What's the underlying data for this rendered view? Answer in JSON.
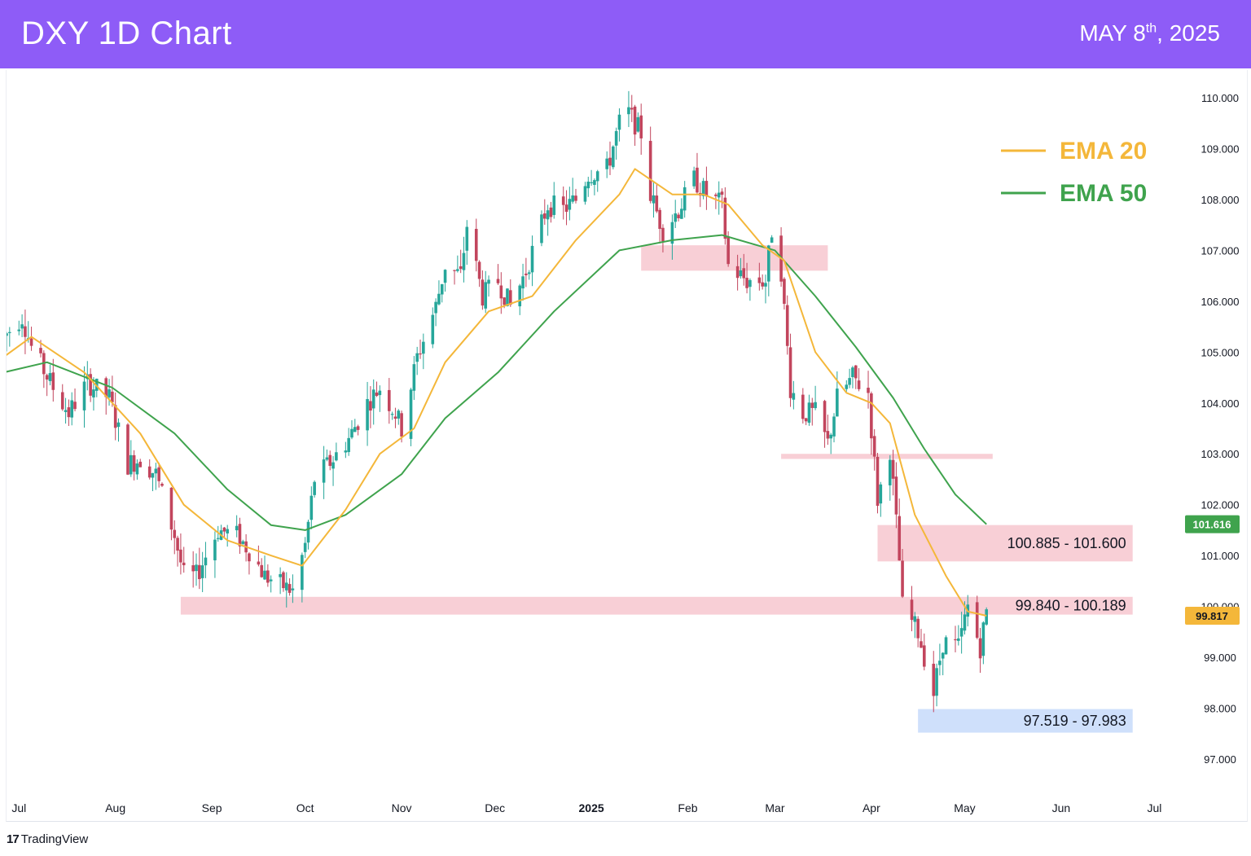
{
  "header": {
    "title": "DXY 1D Chart",
    "date_main": "MAY 8",
    "date_sup": "th",
    "date_year": ", 2025"
  },
  "brand": {
    "logo_mark": "17",
    "logo_text": "TradingView"
  },
  "colors": {
    "header_bg": "#8e5cf7",
    "up_candle": "#26a69a",
    "down_candle": "#c2455d",
    "ema20": "#f4b73a",
    "ema50": "#3fa34d",
    "resistance_zone": "#f8cfd6",
    "support_zone": "#cfe0fb"
  },
  "chart_data": {
    "type": "candlestick",
    "symbol": "DXY",
    "timeframe": "1D",
    "ylim": [
      96.3,
      110.5
    ],
    "y_ticks": [
      "97.000",
      "98.000",
      "99.000",
      "100.000",
      "101.000",
      "102.000",
      "103.000",
      "104.000",
      "105.000",
      "106.000",
      "107.000",
      "108.000",
      "109.000",
      "110.000"
    ],
    "x_ticks": [
      "Jul",
      "Aug",
      "Sep",
      "Oct",
      "Nov",
      "Dec",
      "2025",
      "Feb",
      "Mar",
      "Apr",
      "May",
      "Jun",
      "Jul"
    ],
    "x_range_days": [
      -4,
      373
    ],
    "last_ema50_badge": "101.616",
    "last_ema20_badge": "99.817",
    "legend": [
      {
        "name": "EMA 20",
        "color": "#f4b73a"
      },
      {
        "name": "EMA 50",
        "color": "#3fa34d"
      }
    ],
    "zones": [
      {
        "kind": "resistance",
        "label": "",
        "from": "2025-01-17",
        "to": "2025-03-18",
        "low": 106.6,
        "high": 107.1
      },
      {
        "kind": "resistance",
        "label": "",
        "from": "2025-03-03",
        "to": "2025-05-10",
        "low": 102.9,
        "high": 103.0
      },
      {
        "kind": "resistance",
        "label": "100.885 - 101.600",
        "from": "2025-04-03",
        "to": "2025-06-24",
        "low": 100.885,
        "high": 101.6
      },
      {
        "kind": "resistance",
        "label": "99.840 - 100.189",
        "from": "2024-08-22",
        "to": "2025-06-24",
        "low": 99.84,
        "high": 100.189
      },
      {
        "kind": "support",
        "label": "97.519 - 97.983",
        "from": "2025-04-16",
        "to": "2025-06-24",
        "low": 97.519,
        "high": 97.983
      }
    ],
    "close_path": [
      [
        "2024-06-26",
        105.3
      ],
      [
        "2024-07-02",
        105.7
      ],
      [
        "2024-07-05",
        105.1
      ],
      [
        "2024-07-12",
        104.3
      ],
      [
        "2024-07-17",
        103.8
      ],
      [
        "2024-07-23",
        104.4
      ],
      [
        "2024-07-30",
        104.1
      ],
      [
        "2024-08-05",
        102.8
      ],
      [
        "2024-08-09",
        102.9
      ],
      [
        "2024-08-14",
        102.6
      ],
      [
        "2024-08-20",
        101.4
      ],
      [
        "2024-08-23",
        100.6
      ],
      [
        "2024-08-27",
        100.6
      ],
      [
        "2024-09-03",
        101.5
      ],
      [
        "2024-09-09",
        101.4
      ],
      [
        "2024-09-13",
        101.1
      ],
      [
        "2024-09-18",
        100.6
      ],
      [
        "2024-09-24",
        100.4
      ],
      [
        "2024-09-27",
        100.3
      ],
      [
        "2024-10-01",
        101.2
      ],
      [
        "2024-10-04",
        102.5
      ],
      [
        "2024-10-10",
        102.9
      ],
      [
        "2024-10-15",
        103.3
      ],
      [
        "2024-10-21",
        104.0
      ],
      [
        "2024-10-25",
        104.3
      ],
      [
        "2024-10-30",
        103.8
      ],
      [
        "2024-11-01",
        103.5
      ],
      [
        "2024-11-06",
        104.9
      ],
      [
        "2024-11-12",
        105.9
      ],
      [
        "2024-11-15",
        106.7
      ],
      [
        "2024-11-20",
        106.5
      ],
      [
        "2024-11-22",
        107.5
      ],
      [
        "2024-11-27",
        106.1
      ],
      [
        "2024-12-02",
        106.4
      ],
      [
        "2024-12-06",
        105.9
      ],
      [
        "2024-12-11",
        106.6
      ],
      [
        "2024-12-18",
        107.9
      ],
      [
        "2024-12-23",
        107.8
      ],
      [
        "2024-12-27",
        108.0
      ],
      [
        "2024-12-31",
        108.5
      ],
      [
        "2025-01-06",
        108.6
      ],
      [
        "2025-01-10",
        109.5
      ],
      [
        "2025-01-13",
        109.7
      ],
      [
        "2025-01-17",
        109.3
      ],
      [
        "2025-01-20",
        108.1
      ],
      [
        "2025-01-24",
        107.4
      ],
      [
        "2025-01-29",
        107.8
      ],
      [
        "2025-02-03",
        108.4
      ],
      [
        "2025-02-07",
        108.1
      ],
      [
        "2025-02-12",
        107.9
      ],
      [
        "2025-02-14",
        106.7
      ],
      [
        "2025-02-20",
        106.4
      ],
      [
        "2025-02-26",
        106.4
      ],
      [
        "2025-02-28",
        107.4
      ],
      [
        "2025-03-03",
        106.6
      ],
      [
        "2025-03-06",
        104.3
      ],
      [
        "2025-03-10",
        103.8
      ],
      [
        "2025-03-14",
        103.8
      ],
      [
        "2025-03-18",
        103.2
      ],
      [
        "2025-03-21",
        104.1
      ],
      [
        "2025-03-26",
        104.5
      ],
      [
        "2025-03-31",
        104.2
      ],
      [
        "2025-04-03",
        102.1
      ],
      [
        "2025-04-07",
        103.1
      ],
      [
        "2025-04-10",
        100.9
      ],
      [
        "2025-04-11",
        100.0
      ],
      [
        "2025-04-16",
        99.5
      ],
      [
        "2025-04-21",
        98.3
      ],
      [
        "2025-04-24",
        99.3
      ],
      [
        "2025-04-29",
        99.2
      ],
      [
        "2025-05-02",
        100.0
      ],
      [
        "2025-05-06",
        99.2
      ],
      [
        "2025-05-08",
        99.9
      ]
    ],
    "ema20_path": [
      [
        "2024-06-26",
        104.9
      ],
      [
        "2024-07-05",
        105.3
      ],
      [
        "2024-07-22",
        104.6
      ],
      [
        "2024-08-09",
        103.4
      ],
      [
        "2024-08-23",
        102.0
      ],
      [
        "2024-09-06",
        101.3
      ],
      [
        "2024-09-20",
        101.0
      ],
      [
        "2024-09-30",
        100.8
      ],
      [
        "2024-10-14",
        101.9
      ],
      [
        "2024-10-25",
        103.0
      ],
      [
        "2024-11-05",
        103.5
      ],
      [
        "2024-11-15",
        104.8
      ],
      [
        "2024-11-29",
        105.8
      ],
      [
        "2024-12-13",
        106.1
      ],
      [
        "2024-12-27",
        107.2
      ],
      [
        "2025-01-10",
        108.1
      ],
      [
        "2025-01-15",
        108.6
      ],
      [
        "2025-01-27",
        108.1
      ],
      [
        "2025-02-06",
        108.1
      ],
      [
        "2025-02-14",
        107.9
      ],
      [
        "2025-02-25",
        107.1
      ],
      [
        "2025-03-04",
        106.8
      ],
      [
        "2025-03-14",
        105.0
      ],
      [
        "2025-03-24",
        104.2
      ],
      [
        "2025-04-01",
        104.0
      ],
      [
        "2025-04-07",
        103.6
      ],
      [
        "2025-04-15",
        101.8
      ],
      [
        "2025-04-25",
        100.6
      ],
      [
        "2025-05-02",
        99.9
      ],
      [
        "2025-05-08",
        99.817
      ]
    ],
    "ema50_path": [
      [
        "2024-06-26",
        104.6
      ],
      [
        "2024-07-10",
        104.8
      ],
      [
        "2024-07-31",
        104.3
      ],
      [
        "2024-08-20",
        103.4
      ],
      [
        "2024-09-06",
        102.3
      ],
      [
        "2024-09-20",
        101.6
      ],
      [
        "2024-10-01",
        101.5
      ],
      [
        "2024-10-14",
        101.8
      ],
      [
        "2024-11-01",
        102.6
      ],
      [
        "2024-11-15",
        103.7
      ],
      [
        "2024-12-02",
        104.6
      ],
      [
        "2024-12-20",
        105.8
      ],
      [
        "2025-01-10",
        107.0
      ],
      [
        "2025-01-27",
        107.2
      ],
      [
        "2025-02-12",
        107.3
      ],
      [
        "2025-03-01",
        107.0
      ],
      [
        "2025-03-14",
        106.1
      ],
      [
        "2025-03-27",
        105.1
      ],
      [
        "2025-04-08",
        104.1
      ],
      [
        "2025-04-18",
        103.1
      ],
      [
        "2025-04-28",
        102.2
      ],
      [
        "2025-05-08",
        101.616
      ]
    ]
  }
}
